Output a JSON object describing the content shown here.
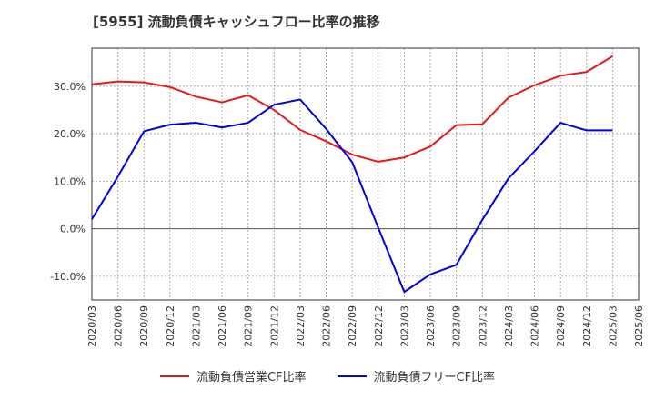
{
  "chart_data": {
    "type": "line",
    "title": "[5955]  流動負債キャッシュフロー比率の推移",
    "xlabel": "",
    "ylabel": "",
    "x": [
      "2020/03",
      "2020/06",
      "2020/09",
      "2020/12",
      "2021/03",
      "2021/06",
      "2021/09",
      "2021/12",
      "2022/03",
      "2022/06",
      "2022/09",
      "2022/12",
      "2023/03",
      "2023/06",
      "2023/09",
      "2023/12",
      "2024/03",
      "2024/06",
      "2024/09",
      "2024/12",
      "2025/03",
      "2025/06"
    ],
    "yticks": [
      "-10.0%",
      "0.0%",
      "10.0%",
      "20.0%",
      "30.0%"
    ],
    "ylim": [
      -15,
      38
    ],
    "grid": true,
    "legend_position": "bottom",
    "series": [
      {
        "name": "流動負債営業CF比率",
        "color": "#e31a1c",
        "values": [
          30.4,
          31.0,
          30.8,
          29.8,
          27.8,
          26.6,
          28.1,
          25.0,
          20.8,
          18.4,
          15.6,
          14.1,
          15.0,
          17.3,
          21.8,
          22.0,
          27.6,
          30.2,
          32.2,
          33.0,
          36.3,
          null
        ]
      },
      {
        "name": "流動負債フリーCF比率",
        "color": "#0000e0",
        "values": [
          2.0,
          11.0,
          20.5,
          21.9,
          22.3,
          21.3,
          22.3,
          26.1,
          27.2,
          21.0,
          14.0,
          0.2,
          -13.3,
          -9.6,
          -7.6,
          1.9,
          10.6,
          16.3,
          22.3,
          20.7,
          20.7,
          null
        ]
      }
    ]
  }
}
